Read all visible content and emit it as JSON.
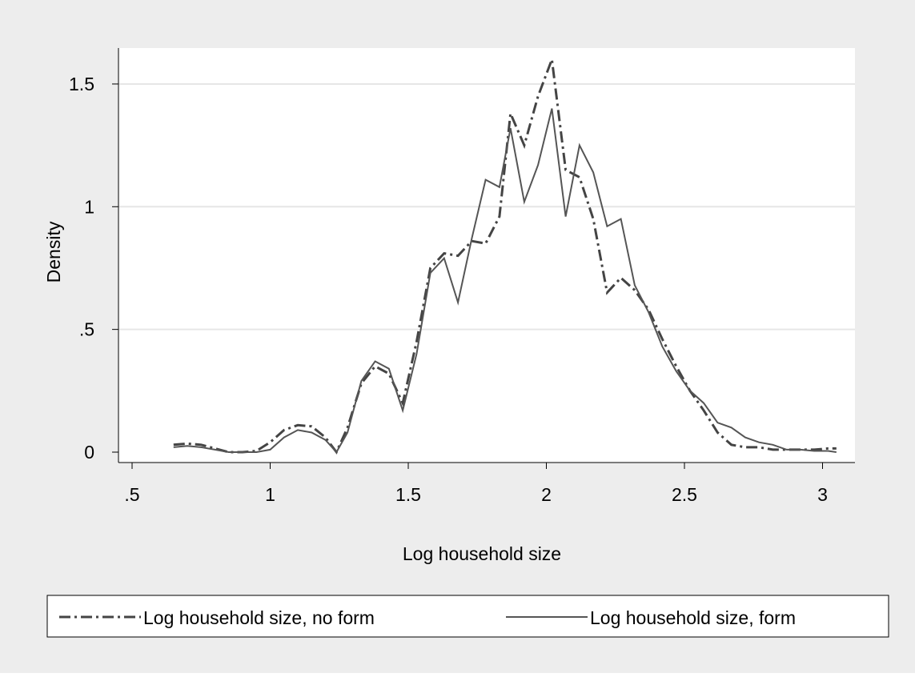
{
  "chart_data": {
    "type": "line",
    "title": "",
    "xlabel": "Log household size",
    "ylabel": "Density",
    "xlim": [
      0.5,
      3.05
    ],
    "ylim": [
      0,
      1.6
    ],
    "x_ticks": [
      0.5,
      1,
      1.5,
      2,
      2.5,
      3
    ],
    "x_tick_labels": [
      ".5",
      "1",
      "1.5",
      "2",
      "2.5",
      "3"
    ],
    "y_ticks": [
      0,
      0.5,
      1,
      1.5
    ],
    "y_tick_labels": [
      "0",
      ".5",
      "1",
      "1.5"
    ],
    "grid": "horizontal",
    "legend_position": "bottom",
    "colors": {
      "background": "#ededed",
      "plot_background": "#ffffff",
      "grid": "#e6e6e6",
      "series_no_form": "#444444",
      "series_form": "#555555"
    },
    "series": [
      {
        "name": "Log household size, no form",
        "style": "dash-dot",
        "points": [
          [
            0.65,
            0.03
          ],
          [
            0.7,
            0.035
          ],
          [
            0.75,
            0.03
          ],
          [
            0.8,
            0.015
          ],
          [
            0.85,
            0.0
          ],
          [
            0.9,
            0.0
          ],
          [
            0.95,
            0.005
          ],
          [
            1.0,
            0.04
          ],
          [
            1.05,
            0.09
          ],
          [
            1.1,
            0.11
          ],
          [
            1.15,
            0.105
          ],
          [
            1.2,
            0.06
          ],
          [
            1.24,
            0.0
          ],
          [
            1.28,
            0.1
          ],
          [
            1.33,
            0.28
          ],
          [
            1.38,
            0.35
          ],
          [
            1.43,
            0.32
          ],
          [
            1.48,
            0.2
          ],
          [
            1.53,
            0.45
          ],
          [
            1.58,
            0.75
          ],
          [
            1.63,
            0.81
          ],
          [
            1.68,
            0.8
          ],
          [
            1.73,
            0.86
          ],
          [
            1.78,
            0.85
          ],
          [
            1.83,
            0.96
          ],
          [
            1.87,
            1.38
          ],
          [
            1.92,
            1.25
          ],
          [
            1.97,
            1.45
          ],
          [
            2.02,
            1.6
          ],
          [
            2.07,
            1.15
          ],
          [
            2.12,
            1.12
          ],
          [
            2.17,
            0.95
          ],
          [
            2.22,
            0.65
          ],
          [
            2.27,
            0.71
          ],
          [
            2.32,
            0.66
          ],
          [
            2.37,
            0.58
          ],
          [
            2.42,
            0.46
          ],
          [
            2.47,
            0.35
          ],
          [
            2.52,
            0.25
          ],
          [
            2.57,
            0.17
          ],
          [
            2.62,
            0.08
          ],
          [
            2.67,
            0.03
          ],
          [
            2.72,
            0.02
          ],
          [
            2.77,
            0.02
          ],
          [
            2.82,
            0.01
          ],
          [
            2.87,
            0.01
          ],
          [
            2.92,
            0.01
          ],
          [
            2.97,
            0.01
          ],
          [
            3.02,
            0.015
          ],
          [
            3.05,
            0.015
          ]
        ]
      },
      {
        "name": "Log household size, form",
        "style": "solid",
        "points": [
          [
            0.65,
            0.02
          ],
          [
            0.7,
            0.025
          ],
          [
            0.75,
            0.02
          ],
          [
            0.8,
            0.01
          ],
          [
            0.85,
            0.0
          ],
          [
            0.9,
            0.0
          ],
          [
            0.95,
            0.0
          ],
          [
            1.0,
            0.01
          ],
          [
            1.05,
            0.06
          ],
          [
            1.1,
            0.09
          ],
          [
            1.15,
            0.08
          ],
          [
            1.2,
            0.05
          ],
          [
            1.24,
            0.0
          ],
          [
            1.28,
            0.08
          ],
          [
            1.33,
            0.29
          ],
          [
            1.38,
            0.37
          ],
          [
            1.43,
            0.34
          ],
          [
            1.48,
            0.17
          ],
          [
            1.53,
            0.4
          ],
          [
            1.58,
            0.73
          ],
          [
            1.63,
            0.79
          ],
          [
            1.68,
            0.61
          ],
          [
            1.73,
            0.87
          ],
          [
            1.78,
            1.11
          ],
          [
            1.83,
            1.08
          ],
          [
            1.87,
            1.32
          ],
          [
            1.92,
            1.02
          ],
          [
            1.97,
            1.17
          ],
          [
            2.02,
            1.4
          ],
          [
            2.07,
            0.96
          ],
          [
            2.12,
            1.25
          ],
          [
            2.17,
            1.14
          ],
          [
            2.22,
            0.92
          ],
          [
            2.27,
            0.95
          ],
          [
            2.32,
            0.68
          ],
          [
            2.37,
            0.57
          ],
          [
            2.42,
            0.43
          ],
          [
            2.47,
            0.33
          ],
          [
            2.52,
            0.25
          ],
          [
            2.57,
            0.2
          ],
          [
            2.62,
            0.12
          ],
          [
            2.67,
            0.1
          ],
          [
            2.72,
            0.06
          ],
          [
            2.77,
            0.04
          ],
          [
            2.82,
            0.03
          ],
          [
            2.87,
            0.01
          ],
          [
            2.92,
            0.01
          ],
          [
            2.97,
            0.005
          ],
          [
            3.02,
            0.005
          ],
          [
            3.05,
            0.0
          ]
        ]
      }
    ]
  }
}
